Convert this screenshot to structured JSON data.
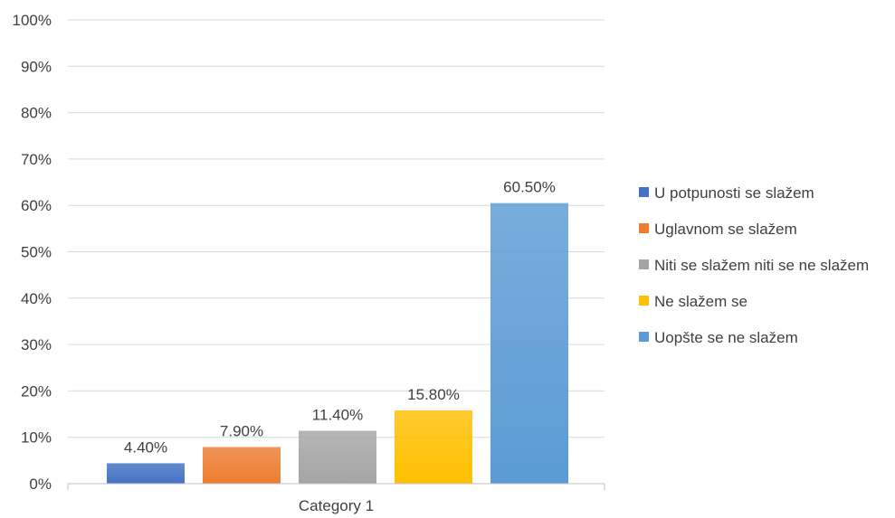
{
  "chart_data": {
    "type": "bar",
    "categories": [
      "Category 1"
    ],
    "series": [
      {
        "name": "U potpunosti se slažem",
        "values": [
          4.4
        ],
        "label": "4.40%",
        "color": "#4472C4"
      },
      {
        "name": "Uglavnom se slažem",
        "values": [
          7.9
        ],
        "label": "7.90%",
        "color": "#ED7D31"
      },
      {
        "name": "Niti se slažem niti se ne slažem",
        "values": [
          11.4
        ],
        "label": "11.40%",
        "color": "#A5A5A5"
      },
      {
        "name": "Ne slažem se",
        "values": [
          15.8
        ],
        "label": "15.80%",
        "color": "#FFC000"
      },
      {
        "name": "Uopšte se ne slažem",
        "values": [
          60.5
        ],
        "label": "60.50%",
        "color": "#5B9BD5"
      }
    ],
    "ylim": [
      0,
      100
    ],
    "yticks": [
      "0%",
      "10%",
      "20%",
      "30%",
      "40%",
      "50%",
      "60%",
      "70%",
      "80%",
      "90%",
      "100%"
    ],
    "grid": true,
    "legend_position": "right"
  }
}
